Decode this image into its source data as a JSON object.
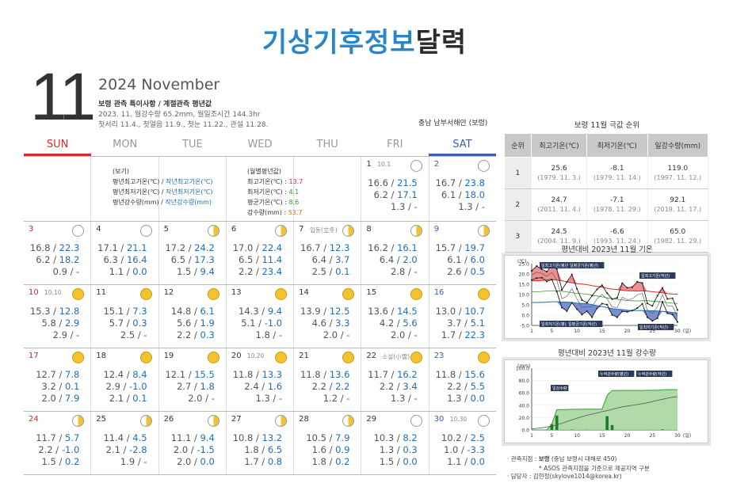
{
  "title": {
    "blue": "기상기후정보",
    "dark": "달력"
  },
  "header": {
    "month_num": "11",
    "year_month": "2024 November",
    "subtitle": "보령 관측 특이사항 / 계절관측 평년값",
    "line1": "2023. 11. 월강수량 65.2mm, 월일조시간 144.3hr",
    "line2": "첫서리 11.4., 첫얼음 11.9., 첫눈 11.22., 관설 11.28.",
    "region": "충남 남부서해안 (보령)"
  },
  "weekdays": [
    "SUN",
    "MON",
    "TUE",
    "WED",
    "THU",
    "FRI",
    "SAT"
  ],
  "legend_left": {
    "heading": "(보기)",
    "rows": [
      {
        "a": "평년최고기온(℃) / ",
        "b": "작년최고기온(℃)"
      },
      {
        "a": "평년최저기온(℃) / ",
        "b": "작년최저기온(℃)"
      },
      {
        "a": "평년강수량(mm) / ",
        "b": "작년강수량(mm)"
      }
    ]
  },
  "legend_right": {
    "heading": "(월별평년값)",
    "rows": [
      {
        "label": "최고기온(℃) : ",
        "value": "13.7"
      },
      {
        "label": "최저기온(℃) : ",
        "value": "4.1"
      },
      {
        "label": "평균기온(℃) : ",
        "value": "8.6"
      },
      {
        "label": "강수량(mm) : ",
        "value": "53.7"
      }
    ]
  },
  "days": [
    {
      "d": "1",
      "note": "10.1",
      "moon": "empty",
      "r1": [
        "16.6 / ",
        "21.5"
      ],
      "r2": [
        "6.2 / ",
        "17.1"
      ],
      "r3": [
        "1.3 / ",
        "-"
      ]
    },
    {
      "d": "2",
      "note": "",
      "moon": "empty",
      "r1": [
        "16.7 / ",
        "23.8"
      ],
      "r2": [
        "6.1 / ",
        "18.0"
      ],
      "r3": [
        "1.3 / ",
        "-"
      ]
    },
    {
      "d": "3",
      "note": "",
      "moon": "empty",
      "r1": [
        "16.8 / ",
        "22.3"
      ],
      "r2": [
        "6.2 / ",
        "18.2"
      ],
      "r3": [
        "0.9 / ",
        "-"
      ]
    },
    {
      "d": "4",
      "note": "",
      "moon": "empty",
      "r1": [
        "17.1 / ",
        "21.1"
      ],
      "r2": [
        "6.3 / ",
        "16.4"
      ],
      "r3": [
        "1.1 / ",
        "0.0"
      ]
    },
    {
      "d": "5",
      "note": "",
      "moon": "half",
      "r1": [
        "17.2 / ",
        "24.2"
      ],
      "r2": [
        "6.5 / ",
        "17.3"
      ],
      "r3": [
        "1.5 / ",
        "9.4"
      ]
    },
    {
      "d": "6",
      "note": "",
      "moon": "half",
      "r1": [
        "17.0 / ",
        "22.4"
      ],
      "r2": [
        "6.5 / ",
        "11.4"
      ],
      "r3": [
        "2.2 / ",
        "23.4"
      ]
    },
    {
      "d": "7",
      "note": "입동(立冬)",
      "moon": "half",
      "r1": [
        "16.7 / ",
        "12.3"
      ],
      "r2": [
        "6.4 / ",
        "3.7"
      ],
      "r3": [
        "2.5 / ",
        "0.1"
      ]
    },
    {
      "d": "8",
      "note": "",
      "moon": "half",
      "r1": [
        "16.2 / ",
        "16.1"
      ],
      "r2": [
        "6.4 / ",
        "2.0"
      ],
      "r3": [
        "2.8 / ",
        "-"
      ]
    },
    {
      "d": "9",
      "note": "",
      "moon": "half",
      "r1": [
        "15.7 / ",
        "19.7"
      ],
      "r2": [
        "6.1 / ",
        "6.0"
      ],
      "r3": [
        "2.6 / ",
        "0.5"
      ]
    },
    {
      "d": "10",
      "note": "10.10",
      "moon": "full",
      "r1": [
        "15.3 / ",
        "12.8"
      ],
      "r2": [
        "5.8 / ",
        "2.9"
      ],
      "r3": [
        "2.9 / ",
        "-"
      ]
    },
    {
      "d": "11",
      "note": "",
      "moon": "full",
      "r1": [
        "15.1 / ",
        "7.3"
      ],
      "r2": [
        "5.7 / ",
        "0.3"
      ],
      "r3": [
        "2.5 / ",
        "-"
      ]
    },
    {
      "d": "12",
      "note": "",
      "moon": "full",
      "r1": [
        "14.8 / ",
        "6.1"
      ],
      "r2": [
        "5.6 / ",
        "1.9"
      ],
      "r3": [
        "2.2 / ",
        "0.3"
      ]
    },
    {
      "d": "13",
      "note": "",
      "moon": "full",
      "r1": [
        "14.3 / ",
        "9.4"
      ],
      "r2": [
        "5.1 / ",
        "-1.0"
      ],
      "r3": [
        "1.8 / ",
        "-"
      ]
    },
    {
      "d": "14",
      "note": "",
      "moon": "full",
      "r1": [
        "13.9 / ",
        "12.5"
      ],
      "r2": [
        "4.6 / ",
        "3.3"
      ],
      "r3": [
        "2.0 / ",
        "-"
      ]
    },
    {
      "d": "15",
      "note": "",
      "moon": "full",
      "r1": [
        "13.6 / ",
        "14.5"
      ],
      "r2": [
        "4.2 / ",
        "5.6"
      ],
      "r3": [
        "2.0 / ",
        "-"
      ]
    },
    {
      "d": "16",
      "note": "",
      "moon": "full",
      "r1": [
        "13.0 / ",
        "10.7"
      ],
      "r2": [
        "3.7 / ",
        "5.1"
      ],
      "r3": [
        "1.7 / ",
        "22.3"
      ]
    },
    {
      "d": "17",
      "note": "",
      "moon": "full",
      "r1": [
        "12.7 / ",
        "7.8"
      ],
      "r2": [
        "3.2 / ",
        "0.1"
      ],
      "r3": [
        "2.0 / ",
        "7.9"
      ]
    },
    {
      "d": "18",
      "note": "",
      "moon": "full",
      "r1": [
        "12.4 / ",
        "8.4"
      ],
      "r2": [
        "2.9 / ",
        "-1.0"
      ],
      "r3": [
        "2.1 / ",
        "0.1"
      ]
    },
    {
      "d": "19",
      "note": "",
      "moon": "full",
      "r1": [
        "12.1 / ",
        "15.5"
      ],
      "r2": [
        "2.7 / ",
        "1.8"
      ],
      "r3": [
        "2.0 / ",
        "-"
      ]
    },
    {
      "d": "20",
      "note": "10.20",
      "moon": "full",
      "r1": [
        "11.8 / ",
        "13.3"
      ],
      "r2": [
        "2.4 / ",
        "1.6"
      ],
      "r3": [
        "1.3 / ",
        "-"
      ]
    },
    {
      "d": "21",
      "note": "",
      "moon": "full",
      "r1": [
        "11.8 / ",
        "13.6"
      ],
      "r2": [
        "2.2 / ",
        "2.2"
      ],
      "r3": [
        "1.2 / ",
        "-"
      ]
    },
    {
      "d": "22",
      "note": "소설(小雪)",
      "moon": "full",
      "r1": [
        "11.7 / ",
        "16.2"
      ],
      "r2": [
        "2.2 / ",
        "3.4"
      ],
      "r3": [
        "1.3 / ",
        "-"
      ]
    },
    {
      "d": "23",
      "note": "",
      "moon": "full",
      "r1": [
        "11.8 / ",
        "15.6"
      ],
      "r2": [
        "2.2 / ",
        "5.5"
      ],
      "r3": [
        "1.3 / ",
        "0.0"
      ]
    },
    {
      "d": "24",
      "note": "",
      "moon": "half",
      "r1": [
        "11.7 / ",
        "5.7"
      ],
      "r2": [
        "2.2 / ",
        "-1.0"
      ],
      "r3": [
        "1.5 / ",
        "0.2"
      ]
    },
    {
      "d": "25",
      "note": "",
      "moon": "half",
      "r1": [
        "11.4 / ",
        "4.5"
      ],
      "r2": [
        "2.1 / ",
        "-2.8"
      ],
      "r3": [
        "1.9 / ",
        "-"
      ]
    },
    {
      "d": "26",
      "note": "",
      "moon": "half",
      "r1": [
        "11.1 / ",
        "9.4"
      ],
      "r2": [
        "2.0 / ",
        "-1.5"
      ],
      "r3": [
        "2.0 / ",
        "0.0"
      ]
    },
    {
      "d": "27",
      "note": "",
      "moon": "half",
      "r1": [
        "10.8 / ",
        "13.2"
      ],
      "r2": [
        "1.8 / ",
        "6.5"
      ],
      "r3": [
        "1.7 / ",
        "0.8"
      ]
    },
    {
      "d": "28",
      "note": "",
      "moon": "half",
      "r1": [
        "10.5 / ",
        "7.9"
      ],
      "r2": [
        "1.6 / ",
        "0.9"
      ],
      "r3": [
        "1.8 / ",
        "0.2"
      ]
    },
    {
      "d": "29",
      "note": "",
      "moon": "empty",
      "r1": [
        "10.3 / ",
        "8.2"
      ],
      "r2": [
        "1.3 / ",
        "0.3"
      ],
      "r3": [
        "1.5 / ",
        "0.0"
      ]
    },
    {
      "d": "30",
      "note": "10.30",
      "moon": "empty",
      "r1": [
        "10.2 / ",
        "2.5"
      ],
      "r2": [
        "1.0 / ",
        "-3.3"
      ],
      "r3": [
        "1.1 / ",
        "0.0"
      ]
    }
  ],
  "rank": {
    "title": "보령 11월 극값 순위",
    "headers": [
      "순위",
      "최고기온(℃)",
      "최저기온(℃)",
      "일강수량(mm)"
    ],
    "rows": [
      {
        "rank": "1",
        "max": "25.6",
        "max_d": "(1979. 11. 3.)",
        "min": "-8.1",
        "min_d": "(1979. 11. 14.)",
        "pr": "119.0",
        "pr_d": "(1997. 11. 12.)"
      },
      {
        "rank": "2",
        "max": "24.7",
        "max_d": "(2011. 11. 4.)",
        "min": "-7.1",
        "min_d": "(1978. 11. 29.)",
        "pr": "92.1",
        "pr_d": "(2019. 11. 17.)"
      },
      {
        "rank": "3",
        "max": "24.5",
        "max_d": "(2004. 11. 9.)",
        "min": "-6.6",
        "min_d": "(1993. 11. 24.)",
        "pr": "65.0",
        "pr_d": "(1982. 11. 29.)"
      }
    ]
  },
  "chart_data": [
    {
      "type": "line",
      "title": "평년대비 2023년 11월 기온",
      "ylabel": "(℃)",
      "xlabel": "(일)",
      "ylim": [
        -5,
        25
      ],
      "yticks": [
        "25.0",
        "20.0",
        "15.0",
        "10.0",
        "5.0",
        "0.0",
        "-5.0"
      ],
      "xticks": [
        "1",
        "5",
        "10",
        "15",
        "20",
        "25",
        "30"
      ],
      "x": [
        1,
        2,
        3,
        4,
        5,
        6,
        7,
        8,
        9,
        10,
        11,
        12,
        13,
        14,
        15,
        16,
        17,
        18,
        19,
        20,
        21,
        22,
        23,
        24,
        25,
        26,
        27,
        28,
        29,
        30
      ],
      "series": [
        {
          "name": "일최고기온(평년)",
          "values": [
            16.6,
            16.7,
            16.8,
            17.1,
            17.2,
            17.0,
            16.7,
            16.2,
            15.7,
            15.3,
            15.1,
            14.8,
            14.3,
            13.9,
            13.6,
            13.0,
            12.7,
            12.4,
            12.1,
            11.8,
            11.8,
            11.7,
            11.8,
            11.7,
            11.4,
            11.1,
            10.8,
            10.5,
            10.3,
            10.2
          ]
        },
        {
          "name": "일평균기온(평년)",
          "values": [
            11.4,
            11.4,
            11.5,
            11.7,
            11.9,
            11.8,
            11.6,
            11.3,
            10.9,
            10.6,
            10.4,
            10.2,
            9.7,
            9.3,
            8.9,
            8.4,
            8.0,
            7.7,
            7.4,
            7.1,
            7.0,
            6.9,
            7.0,
            7.0,
            6.8,
            6.6,
            6.3,
            6.1,
            5.8,
            5.6
          ]
        },
        {
          "name": "일최고기온(작년)",
          "values": [
            21.5,
            23.8,
            22.3,
            21.1,
            24.2,
            22.4,
            12.3,
            16.1,
            19.7,
            12.8,
            7.3,
            6.1,
            9.4,
            12.5,
            14.5,
            10.7,
            7.8,
            8.4,
            15.5,
            13.3,
            13.6,
            16.2,
            15.6,
            5.7,
            4.5,
            9.4,
            13.2,
            7.9,
            8.2,
            2.5
          ]
        },
        {
          "name": "일최저기온(평년)",
          "values": [
            6.2,
            6.1,
            6.2,
            6.3,
            6.5,
            6.5,
            6.4,
            6.4,
            6.1,
            5.8,
            5.7,
            5.6,
            5.1,
            4.6,
            4.2,
            3.7,
            3.2,
            2.9,
            2.7,
            2.4,
            2.2,
            2.2,
            2.2,
            2.2,
            2.1,
            2.0,
            1.8,
            1.6,
            1.3,
            1.0
          ]
        },
        {
          "name": "일평균기온(작년)",
          "values": [
            19.3,
            20.9,
            20.3,
            18.8,
            20.8,
            17.0,
            8.0,
            9.1,
            12.9,
            7.9,
            3.8,
            4.0,
            4.2,
            7.9,
            10.1,
            7.9,
            4.0,
            3.7,
            8.7,
            7.5,
            7.9,
            9.8,
            10.6,
            2.4,
            0.9,
            4.0,
            9.9,
            4.4,
            4.3,
            -0.4
          ]
        },
        {
          "name": "일최저기온(작년)",
          "values": [
            17.1,
            18.0,
            18.2,
            16.4,
            17.3,
            11.4,
            3.7,
            2.0,
            6.0,
            2.9,
            0.3,
            1.9,
            -1.0,
            3.3,
            5.6,
            5.1,
            0.1,
            -1.0,
            1.8,
            1.6,
            2.2,
            3.4,
            5.5,
            -1.0,
            -2.8,
            -1.5,
            6.5,
            0.9,
            0.3,
            -3.3
          ]
        }
      ]
    },
    {
      "type": "area",
      "title": "평년대비 2023년 11월 강수량",
      "ylabel": "(mm)",
      "xlabel": "(일)",
      "ylim": [
        0,
        100
      ],
      "yticks": [
        "100.0",
        "80.0",
        "60.0",
        "40.0",
        "20.0",
        "0.0"
      ],
      "xticks": [
        "1",
        "5",
        "10",
        "15",
        "20",
        "25",
        "30"
      ],
      "x": [
        1,
        2,
        3,
        4,
        5,
        6,
        7,
        8,
        9,
        10,
        11,
        12,
        13,
        14,
        15,
        16,
        17,
        18,
        19,
        20,
        21,
        22,
        23,
        24,
        25,
        26,
        27,
        28,
        29,
        30
      ],
      "series": [
        {
          "name": "일강수량",
          "values": [
            0,
            0,
            0,
            0,
            9.4,
            23.4,
            0.1,
            0,
            0.5,
            0,
            0,
            0.3,
            0,
            0,
            0,
            22.3,
            7.9,
            0.1,
            0,
            0,
            0,
            0,
            0,
            0.2,
            0,
            0,
            0.8,
            0.2,
            0,
            0
          ]
        },
        {
          "name": "누적강수량(평년)",
          "values": [
            1.3,
            2.6,
            3.5,
            4.6,
            6.1,
            8.3,
            10.8,
            13.6,
            16.2,
            19.1,
            21.6,
            23.8,
            25.6,
            27.6,
            29.6,
            31.3,
            33.3,
            35.4,
            37.4,
            38.7,
            39.9,
            41.2,
            42.5,
            44.0,
            45.9,
            47.9,
            49.6,
            51.4,
            52.9,
            54.0
          ]
        },
        {
          "name": "누적강수량(작년)",
          "values": [
            0,
            0,
            0,
            0,
            9.4,
            32.8,
            32.9,
            32.9,
            33.4,
            33.4,
            33.4,
            33.7,
            33.7,
            33.7,
            33.7,
            56.0,
            63.9,
            64.0,
            64.0,
            64.0,
            64.0,
            64.0,
            64.0,
            64.2,
            64.2,
            64.2,
            65.0,
            65.2,
            65.2,
            65.2
          ]
        }
      ]
    }
  ],
  "footer": {
    "station_label": "관측지점 : ",
    "station": "보령",
    "station_detail": " (충남 보령시 대해로 450)",
    "asos": "* ASOS 관측지점을 기준으로 제공지역 구분",
    "contact_label": "담당자 : ",
    "contact": "김현정(skylove1014@korea.kr)"
  }
}
